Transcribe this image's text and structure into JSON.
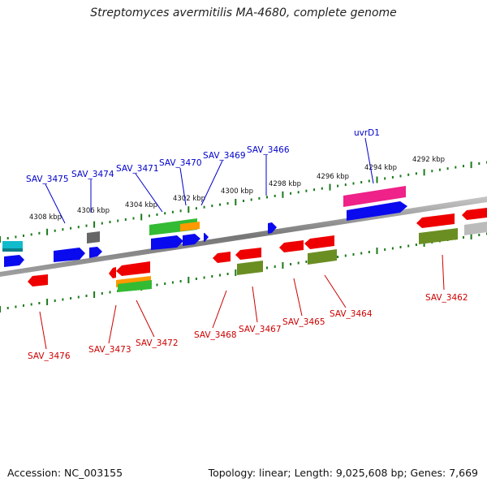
{
  "title": "Streptomyces avermitilis MA-4680, complete genome",
  "footer": {
    "accession": "Accession: NC_003155",
    "stats": "Topology: linear; Length: 9,025,608 bp; Genes: 7,669"
  },
  "scale_labels": [
    "4308 kbp",
    "4306 kbp",
    "4304 kbp",
    "4302 kbp",
    "4300 kbp",
    "4298 kbp",
    "4296 kbp",
    "4294 kbp",
    "4292 kbp"
  ],
  "top_gene_labels": [
    "SAV_3475",
    "SAV_3474",
    "SAV_3471",
    "SAV_3470",
    "SAV_3469",
    "SAV_3466",
    "uvrD1"
  ],
  "bottom_gene_labels": [
    "SAV_3476",
    "SAV_3473",
    "SAV_3472",
    "SAV_3468",
    "SAV_3467",
    "SAV_3465",
    "SAV_3464",
    "SAV_3462"
  ],
  "colors": {
    "backbone": "#8a8a8a",
    "tick": "#1a7a1a",
    "top_label": "#0000cc",
    "bottom_label": "#cc0000",
    "blue": "#0a0aee",
    "red": "#ee0000",
    "green": "#33bb33",
    "orange": "#ff9900",
    "olive": "#6b8e23",
    "pink": "#ee2288",
    "cyan": "#11bbcc",
    "gray": "#666666",
    "lightgray": "#bbbbbb"
  }
}
